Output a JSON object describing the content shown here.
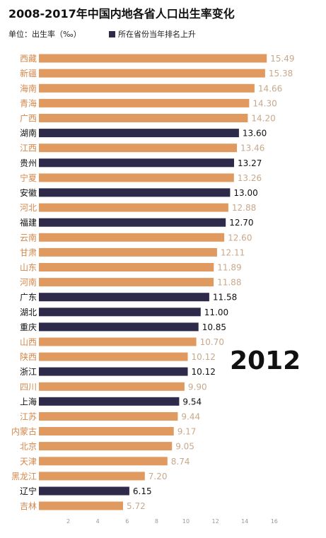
{
  "title": "2008-2017年中国内地各省人口出生率变化",
  "unit_label": "单位：出生率（‰）",
  "legend_label": "所在省份当年排名上升",
  "year_label": "2012",
  "colors": {
    "rank_up": "#2d2a4a",
    "other": "#e09a5f",
    "label_other": "#d4874a",
    "value_other": "#c8a98c",
    "label_up": "#111111",
    "value_up": "#111111",
    "axis_tick": "#999999"
  },
  "chart_data": {
    "type": "bar",
    "orientation": "horizontal",
    "title": "2008-2017年中国内地各省人口出生率变化",
    "xlim": [
      0,
      16
    ],
    "xticks": [
      2,
      4,
      6,
      8,
      10,
      12,
      14,
      16
    ],
    "categories": [
      "西藏",
      "新疆",
      "海南",
      "青海",
      "广西",
      "湖南",
      "江西",
      "贵州",
      "宁夏",
      "安徽",
      "河北",
      "福建",
      "云南",
      "甘肃",
      "山东",
      "河南",
      "广东",
      "湖北",
      "重庆",
      "山西",
      "陕西",
      "浙江",
      "四川",
      "上海",
      "江苏",
      "内蒙古",
      "北京",
      "天津",
      "黑龙江",
      "辽宁",
      "吉林"
    ],
    "values": [
      15.49,
      15.38,
      14.66,
      14.3,
      14.2,
      13.6,
      13.46,
      13.27,
      13.26,
      13.0,
      12.88,
      12.7,
      12.6,
      12.11,
      11.89,
      11.88,
      11.58,
      11.0,
      10.85,
      10.7,
      10.12,
      10.12,
      9.9,
      9.54,
      9.44,
      9.17,
      9.05,
      8.74,
      7.2,
      6.15,
      5.72
    ],
    "value_labels": [
      "15.49",
      "15.38",
      "14.66",
      "14.30",
      "14.20",
      "13.60",
      "13.46",
      "13.27",
      "13.26",
      "13.00",
      "12.88",
      "12.70",
      "12.60",
      "12.11",
      "11.89",
      "11.88",
      "11.58",
      "11.00",
      "10.85",
      "10.70",
      "10.12",
      "10.12",
      "9.90",
      "9.54",
      "9.44",
      "9.17",
      "9.05",
      "8.74",
      "7.20",
      "6.15",
      "5.72"
    ],
    "rank_up": [
      false,
      false,
      false,
      false,
      false,
      true,
      false,
      true,
      false,
      true,
      false,
      true,
      false,
      false,
      false,
      false,
      true,
      true,
      true,
      false,
      false,
      true,
      false,
      true,
      false,
      false,
      false,
      false,
      false,
      true,
      false
    ]
  }
}
